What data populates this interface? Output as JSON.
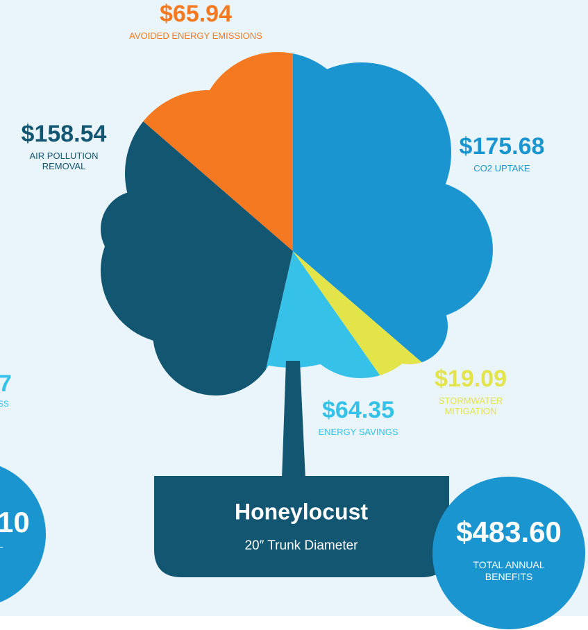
{
  "chart_data": {
    "type": "pie",
    "title": "Honeylocust",
    "subtitle": "20″ Trunk Diameter",
    "categories": [
      "AVOIDED ENERGY EMISSIONS",
      "AIR POLLUTION REMOVAL",
      "ENERGY SAVINGS",
      "STORMWATER MITIGATION",
      "CO2 UPTAKE"
    ],
    "values": [
      65.94,
      158.54,
      64.35,
      19.09,
      175.68
    ],
    "value_labels": [
      "$65.94",
      "$158.54",
      "$64.35",
      "$19.09",
      "$175.68"
    ],
    "colors": [
      "#f47920",
      "#135672",
      "#35c1e8",
      "#e3e34a",
      "#1b95cf"
    ],
    "total": {
      "value": 483.6,
      "label": "$483.60",
      "caption": "TOTAL ANNUAL BENEFITS"
    },
    "cut_off_fragments": [
      "7",
      "SS",
      "10",
      "L"
    ]
  }
}
